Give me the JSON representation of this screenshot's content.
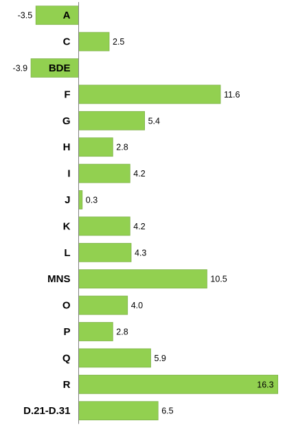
{
  "chart_data": {
    "type": "bar",
    "orientation": "horizontal",
    "categories": [
      "A",
      "C",
      "BDE",
      "F",
      "G",
      "H",
      "I",
      "J",
      "K",
      "L",
      "MNS",
      "O",
      "P",
      "Q",
      "R",
      "D.21-D.31"
    ],
    "values": [
      -3.5,
      2.5,
      -3.9,
      11.6,
      5.4,
      2.8,
      4.2,
      0.3,
      4.2,
      4.3,
      10.5,
      4.0,
      2.8,
      5.9,
      16.3,
      6.5
    ],
    "value_labels": [
      "-3.5",
      "2.5",
      "-3.9",
      "11.6",
      "5.4",
      "2.8",
      "4.2",
      "0.3",
      "4.2",
      "4.3",
      "10.5",
      "4.0",
      "2.8",
      "5.9",
      "16.3",
      "6.5"
    ],
    "bar_color": "#92d050",
    "title": "",
    "xlabel": "",
    "ylabel": "",
    "xlim": [
      -3.9,
      16.3
    ],
    "grid": false,
    "legend": "none"
  }
}
